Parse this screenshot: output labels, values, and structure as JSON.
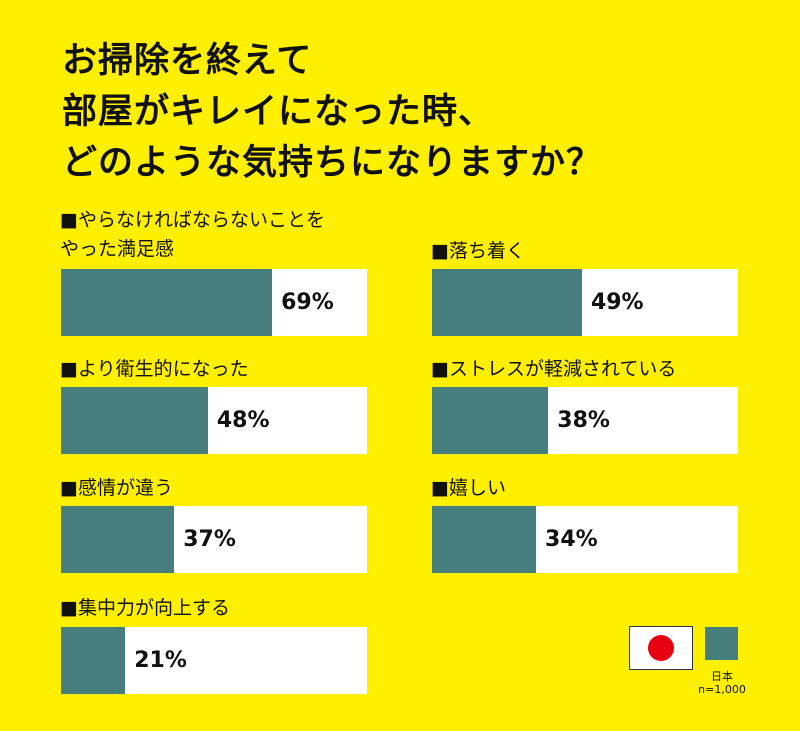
{
  "colors": {
    "background": "#fff000",
    "bar": "#467d7d",
    "track": "#ffffff"
  },
  "chart_data": {
    "type": "bar",
    "orientation": "horizontal",
    "title": "お掃除を終えて\n部屋がキレイになった時、\nどのような気持ちになりますか？",
    "categories": [
      "■やらなければならないことを\nやった満足感",
      "■落ち着く",
      "■より衛生的になった",
      "■ストレスが軽減されている",
      "■感情が違う",
      "■嬉しい",
      "■集中力が向上する"
    ],
    "series": [
      {
        "name": "日本",
        "values": [
          69,
          49,
          48,
          38,
          37,
          34,
          21
        ]
      }
    ],
    "value_labels": [
      "69%",
      "49%",
      "48%",
      "38%",
      "37%",
      "34%",
      "21%"
    ],
    "xlim": [
      0,
      100
    ],
    "unit": "%",
    "legend": {
      "placement": "bottom-right",
      "flag": "japan-flag-icon",
      "name": "日本",
      "sample": "n=1,000"
    }
  }
}
